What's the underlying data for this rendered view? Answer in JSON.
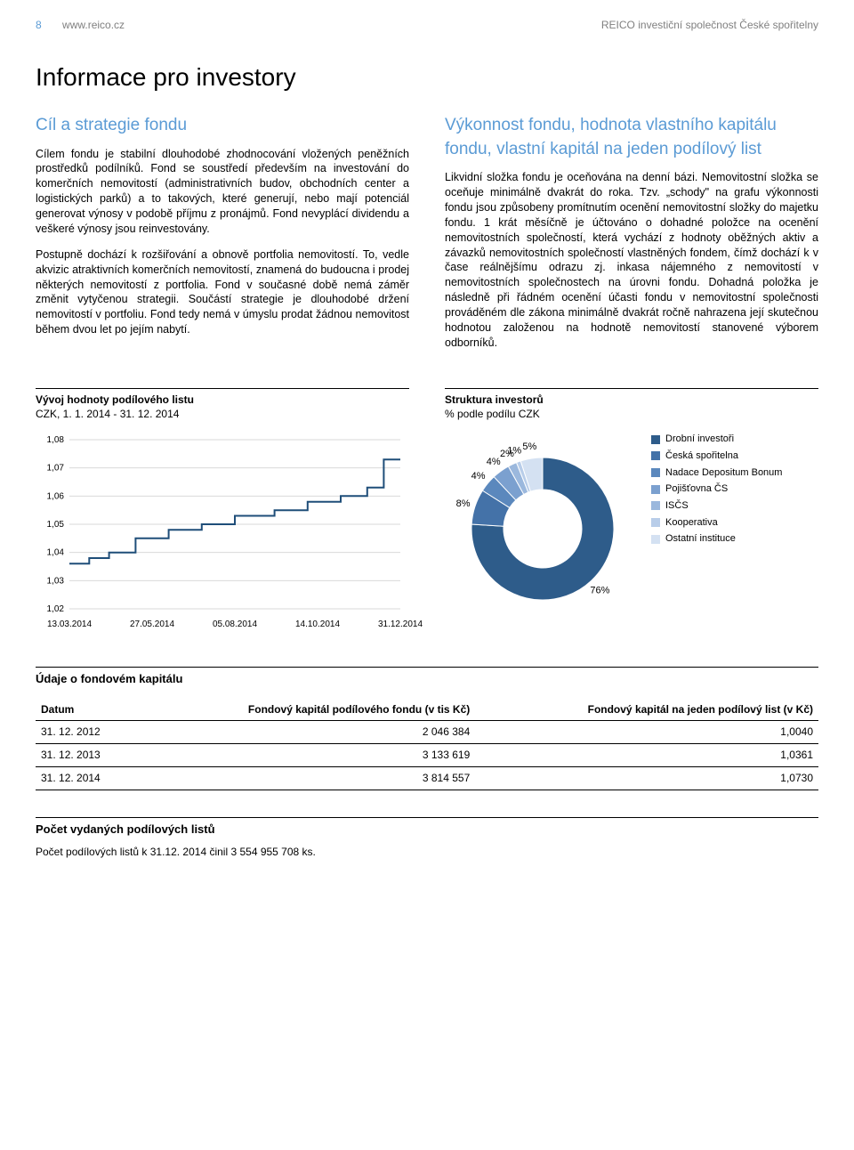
{
  "header": {
    "page_number": "8",
    "domain": "www.reico.cz",
    "company": "REICO investiční společnost České spořitelny"
  },
  "main_title": "Informace pro investory",
  "left_col": {
    "subtitle": "Cíl a strategie fondu",
    "p1": "Cílem fondu je stabilní dlouhodobé zhodnocování vložených peněžních prostředků podílníků. Fond se soustředí především na investování do komerčních nemovitostí (administrativních budov, obchodních center a logistických parků) a to takových, které generují, nebo mají potenciál generovat výnosy v podobě příjmu z pronájmů. Fond nevyplácí dividendu a veškeré výnosy jsou reinvestovány.",
    "p2": "Postupně dochází k rozšiřování a obnově portfolia nemovitostí. To, vedle akvizic atraktivních komerčních nemovitostí, znamená do budoucna i prodej některých nemovitostí z portfolia. Fond v současné době nemá záměr změnit vytyčenou strategii. Součástí strategie je dlouhodobé držení nemovitostí v portfoliu. Fond tedy nemá v úmyslu prodat žádnou nemovitost během dvou let po jejím nabytí."
  },
  "right_col": {
    "subtitle": "Výkonnost fondu, hodnota vlastního kapitálu fondu, vlastní kapitál na jeden podílový list",
    "p1": "Likvidní složka fondu je oceňována na denní bázi. Nemovitostní složka se oceňuje minimálně dvakrát do roka. Tzv. „schody\" na grafu výkonnosti fondu jsou způsobeny promítnutím ocenění nemovitostní složky do majetku fondu. 1 krát měsíčně je účtováno o dohadné položce na ocenění nemovitostních společností, která vychází z hodnoty oběžných aktiv a závazků nemovitostních společností vlastněných fondem, čímž dochází k v čase reálnějšímu odrazu zj. inkasa nájemného z nemovitostí v nemovitostních společnostech na úrovni fondu. Dohadná položka je následně při řádném ocenění účasti fondu v nemovitostní společnosti prováděném dle zákona minimálně dvakrát ročně nahrazena její skutečnou hodnotou založenou na hodnotě nemovitostí stanovené výborem odborníků."
  },
  "line_chart": {
    "title": "Vývoj hodnoty podílového listu",
    "subtitle": "CZK, 1. 1. 2014 - 31. 12. 2014",
    "type": "line",
    "ylim": [
      1.02,
      1.08
    ],
    "ytick_step": 0.01,
    "yticks": [
      "1,02",
      "1,03",
      "1,04",
      "1,05",
      "1,06",
      "1,07",
      "1,08"
    ],
    "xlabels": [
      "13.03.2014",
      "27.05.2014",
      "05.08.2014",
      "14.10.2014",
      "31.12.2014"
    ],
    "line_color": "#1f4e79",
    "line_width": 2,
    "background_color": "#ffffff",
    "grid_color": "#d9d9d9",
    "label_fontsize": 10,
    "points": [
      [
        0.0,
        1.036
      ],
      [
        0.06,
        1.036
      ],
      [
        0.06,
        1.038
      ],
      [
        0.12,
        1.038
      ],
      [
        0.12,
        1.04
      ],
      [
        0.2,
        1.04
      ],
      [
        0.2,
        1.045
      ],
      [
        0.3,
        1.045
      ],
      [
        0.3,
        1.048
      ],
      [
        0.4,
        1.048
      ],
      [
        0.4,
        1.05
      ],
      [
        0.5,
        1.05
      ],
      [
        0.5,
        1.053
      ],
      [
        0.62,
        1.053
      ],
      [
        0.62,
        1.055
      ],
      [
        0.72,
        1.055
      ],
      [
        0.72,
        1.058
      ],
      [
        0.82,
        1.058
      ],
      [
        0.82,
        1.06
      ],
      [
        0.9,
        1.06
      ],
      [
        0.9,
        1.063
      ],
      [
        0.95,
        1.063
      ],
      [
        0.95,
        1.073
      ],
      [
        1.0,
        1.073
      ]
    ]
  },
  "donut_chart": {
    "title": "Struktura investorů",
    "subtitle": "% podle podílu CZK",
    "type": "pie",
    "inner_radius_ratio": 0.55,
    "slices": [
      {
        "label": "Drobní investoři",
        "value": 76,
        "color": "#2e5c8a",
        "text": "76%"
      },
      {
        "label": "Česká spořitelna",
        "value": 8,
        "color": "#4472a8",
        "text": "8%"
      },
      {
        "label": "Nadace Depositum Bonum",
        "value": 4,
        "color": "#5b88bd",
        "text": "4%"
      },
      {
        "label": "Pojišťovna ČS",
        "value": 4,
        "color": "#7ba0cf",
        "text": "4%"
      },
      {
        "label": "ISČS",
        "value": 2,
        "color": "#9bb8dd",
        "text": "2%"
      },
      {
        "label": "Kooperativa",
        "value": 1,
        "color": "#b8cde9",
        "text": "1%"
      },
      {
        "label": "Ostatní instituce",
        "value": 5,
        "color": "#d4e1f2",
        "text": "5%"
      }
    ],
    "center_color": "#ffffff",
    "label_fontsize": 11,
    "legend_fontsize": 11
  },
  "table_section": {
    "title": "Údaje o fondovém kapitálu",
    "columns": [
      "Datum",
      "Fondový kapitál podílového fondu (v tis Kč)",
      "Fondový kapitál na jeden podílový list (v Kč)"
    ],
    "rows": [
      [
        "31. 12. 2012",
        "2 046 384",
        "1,0040"
      ],
      [
        "31. 12. 2013",
        "3 133 619",
        "1,0361"
      ],
      [
        "31. 12. 2014",
        "3 814 557",
        "1,0730"
      ]
    ]
  },
  "footer": {
    "title": "Počet vydaných podílových listů",
    "text": "Počet podílových listů k 31.12. 2014 činil 3 554 955 708 ks."
  }
}
